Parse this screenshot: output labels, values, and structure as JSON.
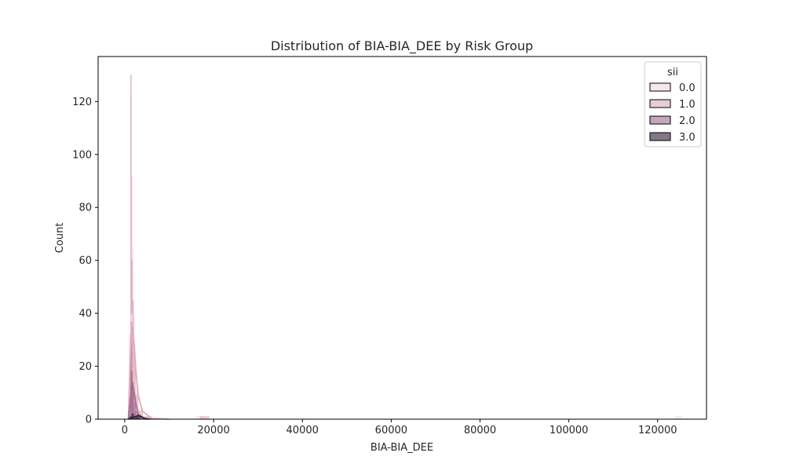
{
  "chart_data": {
    "type": "histogram",
    "title": "Distribution of BIA-BIA_DEE by Risk Group",
    "xlabel": "BIA-BIA_DEE",
    "ylabel": "Count",
    "xlim": [
      -6000,
      131000
    ],
    "ylim": [
      0,
      137
    ],
    "xticks": [
      0,
      20000,
      40000,
      60000,
      80000,
      100000,
      120000
    ],
    "yticks": [
      0,
      20,
      40,
      60,
      80,
      100,
      120
    ],
    "grid": false,
    "legend": {
      "title": "sii",
      "placement": "top-right"
    },
    "series": [
      {
        "name": "0.0",
        "color": "#f4d9de",
        "bins": [
          [
            1000,
            1300,
            32
          ],
          [
            1300,
            1500,
            122
          ],
          [
            1500,
            1700,
            92
          ],
          [
            1700,
            1900,
            65
          ],
          [
            1900,
            2100,
            45
          ],
          [
            2100,
            2400,
            28
          ],
          [
            2400,
            3000,
            12
          ],
          [
            3000,
            4000,
            4
          ],
          [
            4000,
            6000,
            1
          ],
          [
            16000,
            18000,
            1
          ],
          [
            124000,
            125500,
            1
          ]
        ],
        "kde": [
          [
            800,
            0
          ],
          [
            1200,
            25
          ],
          [
            1500,
            40
          ],
          [
            1800,
            36
          ],
          [
            2100,
            30
          ],
          [
            2500,
            20
          ],
          [
            3000,
            10
          ],
          [
            4000,
            3
          ],
          [
            6000,
            0.5
          ],
          [
            10000,
            0
          ]
        ]
      },
      {
        "name": "1.0",
        "color": "#dfa8b7",
        "bins": [
          [
            1000,
            1300,
            20
          ],
          [
            1300,
            1500,
            130
          ],
          [
            1500,
            1700,
            60
          ],
          [
            1700,
            1900,
            45
          ],
          [
            1900,
            2100,
            38
          ],
          [
            2100,
            2400,
            22
          ],
          [
            2400,
            3000,
            9
          ],
          [
            3000,
            4000,
            3
          ],
          [
            4000,
            6000,
            1
          ],
          [
            17000,
            19000,
            1
          ]
        ],
        "kde": [
          [
            800,
            0
          ],
          [
            1200,
            20
          ],
          [
            1500,
            37
          ],
          [
            1800,
            34
          ],
          [
            2100,
            28
          ],
          [
            2500,
            18
          ],
          [
            3000,
            9
          ],
          [
            4000,
            3
          ],
          [
            6000,
            0.3
          ],
          [
            10000,
            0
          ]
        ]
      },
      {
        "name": "2.0",
        "color": "#9f6a8f",
        "bins": [
          [
            1000,
            1300,
            8
          ],
          [
            1300,
            1500,
            30
          ],
          [
            1500,
            1700,
            18
          ],
          [
            1700,
            1900,
            14
          ],
          [
            1900,
            2100,
            10
          ],
          [
            2100,
            2400,
            6
          ],
          [
            2400,
            3000,
            3
          ],
          [
            3000,
            4000,
            1
          ]
        ],
        "kde": [
          [
            800,
            0
          ],
          [
            1200,
            6
          ],
          [
            1500,
            12
          ],
          [
            1800,
            13
          ],
          [
            2100,
            10
          ],
          [
            2500,
            6
          ],
          [
            3000,
            2
          ],
          [
            4000,
            0.5
          ],
          [
            6000,
            0
          ]
        ]
      },
      {
        "name": "3.0",
        "color": "#2e1e3b",
        "bins": [
          [
            1200,
            1600,
            1
          ],
          [
            1600,
            2000,
            2
          ],
          [
            2000,
            2800,
            1
          ],
          [
            2800,
            3600,
            1
          ]
        ],
        "kde": [
          [
            800,
            0
          ],
          [
            1600,
            0.6
          ],
          [
            2400,
            1.0
          ],
          [
            3000,
            1.4
          ],
          [
            3600,
            1.1
          ],
          [
            4400,
            0.3
          ],
          [
            5500,
            0
          ]
        ]
      }
    ]
  }
}
